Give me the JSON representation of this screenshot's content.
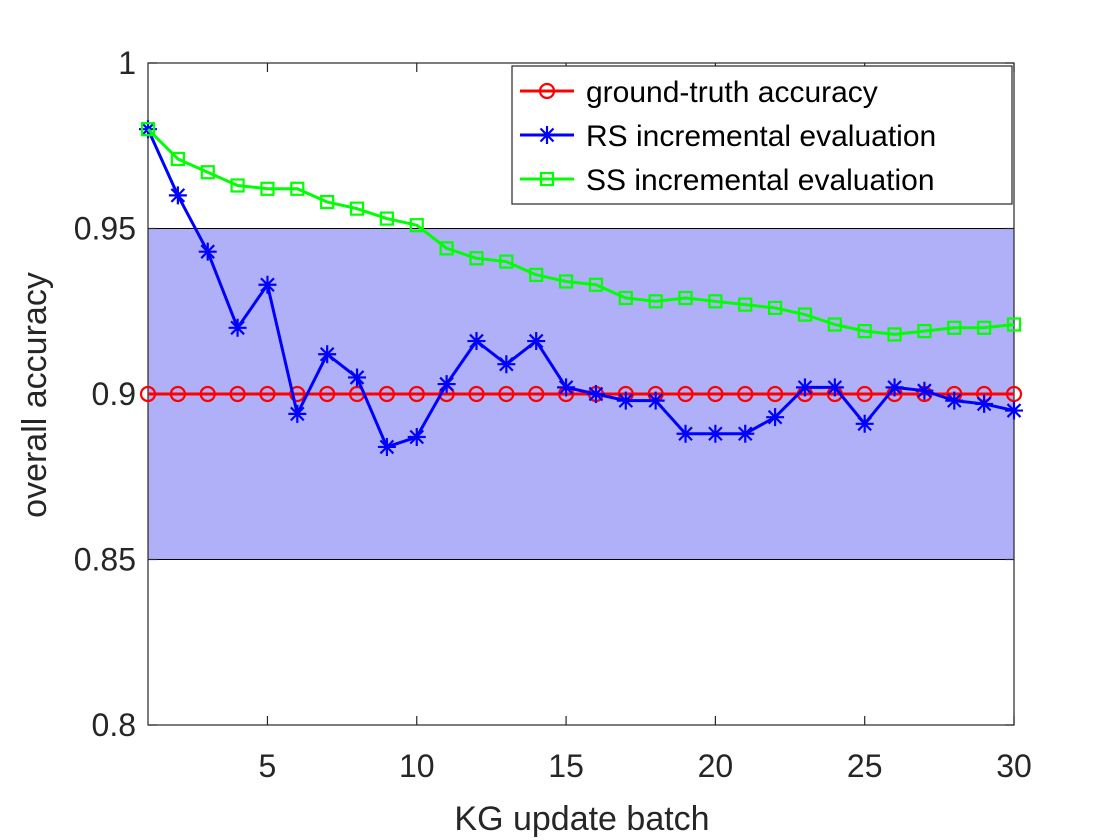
{
  "chart_data": {
    "type": "line",
    "xlabel": "KG update batch",
    "ylabel": "overall accuracy",
    "xlim": [
      1,
      30
    ],
    "ylim": [
      0.8,
      1
    ],
    "xticks": [
      5,
      10,
      15,
      20,
      25,
      30
    ],
    "xtick_labels": [
      "5",
      "10",
      "15",
      "20",
      "25",
      "30"
    ],
    "yticks": [
      0.8,
      0.85,
      0.9,
      0.95,
      1
    ],
    "ytick_labels": [
      "0.8",
      "0.85",
      "0.9",
      "0.95",
      "1"
    ],
    "band": {
      "y_range": [
        0.85,
        0.95
      ],
      "color": "#b0b0f8"
    },
    "legend_position": "top-right",
    "x": [
      1,
      2,
      3,
      4,
      5,
      6,
      7,
      8,
      9,
      10,
      11,
      12,
      13,
      14,
      15,
      16,
      17,
      18,
      19,
      20,
      21,
      22,
      23,
      24,
      25,
      26,
      27,
      28,
      29,
      30
    ],
    "series": [
      {
        "name": "ground-truth accuracy",
        "color": "#ff0000",
        "marker": "circle",
        "values": [
          0.9,
          0.9,
          0.9,
          0.9,
          0.9,
          0.9,
          0.9,
          0.9,
          0.9,
          0.9,
          0.9,
          0.9,
          0.9,
          0.9,
          0.9,
          0.9,
          0.9,
          0.9,
          0.9,
          0.9,
          0.9,
          0.9,
          0.9,
          0.9,
          0.9,
          0.9,
          0.9,
          0.9,
          0.9,
          0.9
        ]
      },
      {
        "name": "RS incremental evaluation",
        "color": "#0000ff",
        "marker": "asterisk",
        "values": [
          0.98,
          0.96,
          0.943,
          0.92,
          0.933,
          0.894,
          0.912,
          0.905,
          0.884,
          0.887,
          0.903,
          0.916,
          0.909,
          0.916,
          0.902,
          0.9,
          0.898,
          0.898,
          0.888,
          0.888,
          0.888,
          0.893,
          0.902,
          0.902,
          0.891,
          0.902,
          0.901,
          0.898,
          0.897,
          0.895
        ]
      },
      {
        "name": "SS incremental evaluation",
        "color": "#00ff00",
        "marker": "square",
        "values": [
          0.98,
          0.971,
          0.967,
          0.963,
          0.962,
          0.962,
          0.958,
          0.956,
          0.953,
          0.951,
          0.944,
          0.941,
          0.94,
          0.936,
          0.934,
          0.933,
          0.929,
          0.928,
          0.929,
          0.928,
          0.927,
          0.926,
          0.924,
          0.921,
          0.919,
          0.918,
          0.919,
          0.92,
          0.92,
          0.921
        ]
      }
    ]
  }
}
